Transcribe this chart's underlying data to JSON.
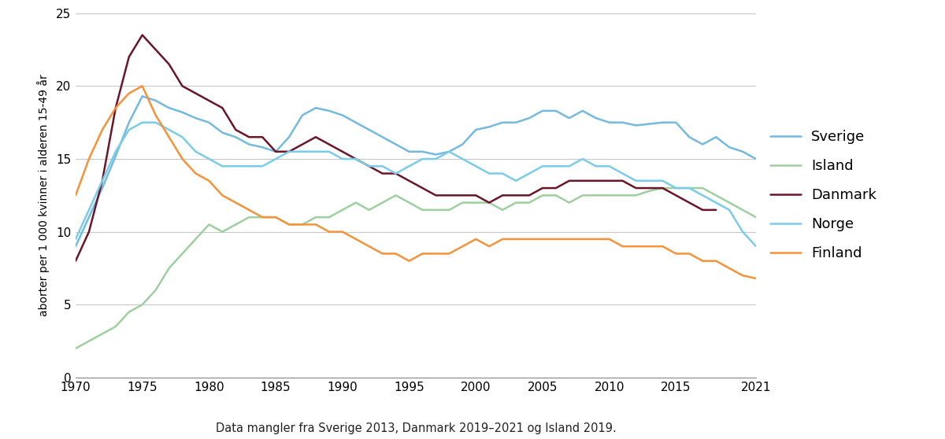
{
  "ylabel": "aborter per 1 000 kvinner i alderen 15-49 år",
  "footnote": "Data mangler fra Sverige 2013, Danmark 2019–2021 og Island 2019.",
  "ylim": [
    0,
    25
  ],
  "yticks": [
    0,
    5,
    10,
    15,
    20,
    25
  ],
  "xlim": [
    1970,
    2021
  ],
  "xticks": [
    1970,
    1975,
    1980,
    1985,
    1990,
    1995,
    2000,
    2005,
    2010,
    2015,
    2021
  ],
  "background_color": "#ffffff",
  "grid_color": "#c8c8c8",
  "series": {
    "Sverige": {
      "color": "#74b9e0",
      "years": [
        1970,
        1971,
        1972,
        1973,
        1974,
        1975,
        1976,
        1977,
        1978,
        1979,
        1980,
        1981,
        1982,
        1983,
        1984,
        1985,
        1986,
        1987,
        1988,
        1989,
        1990,
        1991,
        1992,
        1993,
        1994,
        1995,
        1996,
        1997,
        1998,
        1999,
        2000,
        2001,
        2002,
        2003,
        2004,
        2005,
        2006,
        2007,
        2008,
        2009,
        2010,
        2011,
        2012,
        2014,
        2015,
        2016,
        2017,
        2018,
        2019,
        2020,
        2021
      ],
      "values": [
        9.0,
        11.0,
        13.0,
        15.2,
        17.5,
        19.3,
        19.0,
        18.5,
        18.2,
        17.8,
        17.5,
        16.8,
        16.5,
        16.0,
        15.8,
        15.5,
        16.5,
        18.0,
        18.5,
        18.3,
        18.0,
        17.5,
        17.0,
        16.5,
        16.0,
        15.5,
        15.5,
        15.3,
        15.5,
        16.0,
        17.0,
        17.2,
        17.5,
        17.5,
        17.8,
        18.3,
        18.3,
        17.8,
        18.3,
        17.8,
        17.5,
        17.5,
        17.3,
        17.5,
        17.5,
        16.5,
        16.0,
        16.5,
        15.8,
        15.5,
        15.0
      ]
    },
    "Island": {
      "color": "#9ecf9e",
      "years": [
        1970,
        1971,
        1972,
        1973,
        1974,
        1975,
        1976,
        1977,
        1978,
        1979,
        1980,
        1981,
        1982,
        1983,
        1984,
        1985,
        1986,
        1987,
        1988,
        1989,
        1990,
        1991,
        1992,
        1993,
        1994,
        1995,
        1996,
        1997,
        1998,
        1999,
        2000,
        2001,
        2002,
        2003,
        2004,
        2005,
        2006,
        2007,
        2008,
        2009,
        2010,
        2011,
        2012,
        2013,
        2014,
        2015,
        2016,
        2017,
        2018,
        2020,
        2021
      ],
      "values": [
        2.0,
        2.5,
        3.0,
        3.5,
        4.5,
        5.0,
        6.0,
        7.5,
        8.5,
        9.5,
        10.5,
        10.0,
        10.5,
        11.0,
        11.0,
        11.0,
        10.5,
        10.5,
        11.0,
        11.0,
        11.5,
        12.0,
        11.5,
        12.0,
        12.5,
        12.0,
        11.5,
        11.5,
        11.5,
        12.0,
        12.0,
        12.0,
        11.5,
        12.0,
        12.0,
        12.5,
        12.5,
        12.0,
        12.5,
        12.5,
        12.5,
        12.5,
        12.5,
        12.8,
        13.0,
        13.0,
        13.0,
        13.0,
        12.5,
        11.5,
        11.0
      ]
    },
    "Danmark": {
      "color": "#6b1528",
      "years": [
        1970,
        1971,
        1972,
        1973,
        1974,
        1975,
        1976,
        1977,
        1978,
        1979,
        1980,
        1981,
        1982,
        1983,
        1984,
        1985,
        1986,
        1987,
        1988,
        1989,
        1990,
        1991,
        1992,
        1993,
        1994,
        1995,
        1996,
        1997,
        1998,
        1999,
        2000,
        2001,
        2002,
        2003,
        2004,
        2005,
        2006,
        2007,
        2008,
        2009,
        2010,
        2011,
        2012,
        2013,
        2014,
        2015,
        2016,
        2017,
        2018
      ],
      "values": [
        8.0,
        10.0,
        13.5,
        18.5,
        22.0,
        23.5,
        22.5,
        21.5,
        20.0,
        19.5,
        19.0,
        18.5,
        17.0,
        16.5,
        16.5,
        15.5,
        15.5,
        16.0,
        16.5,
        16.0,
        15.5,
        15.0,
        14.5,
        14.0,
        14.0,
        13.5,
        13.0,
        12.5,
        12.5,
        12.5,
        12.5,
        12.0,
        12.5,
        12.5,
        12.5,
        13.0,
        13.0,
        13.5,
        13.5,
        13.5,
        13.5,
        13.5,
        13.0,
        13.0,
        13.0,
        12.5,
        12.0,
        11.5,
        11.5
      ]
    },
    "Norge": {
      "color": "#7acce8",
      "years": [
        1970,
        1971,
        1972,
        1973,
        1974,
        1975,
        1976,
        1977,
        1978,
        1979,
        1980,
        1981,
        1982,
        1983,
        1984,
        1985,
        1986,
        1987,
        1988,
        1989,
        1990,
        1991,
        1992,
        1993,
        1994,
        1995,
        1996,
        1997,
        1998,
        1999,
        2000,
        2001,
        2002,
        2003,
        2004,
        2005,
        2006,
        2007,
        2008,
        2009,
        2010,
        2011,
        2012,
        2013,
        2014,
        2015,
        2016,
        2017,
        2018,
        2019,
        2020,
        2021
      ],
      "values": [
        9.5,
        11.5,
        13.5,
        15.5,
        17.0,
        17.5,
        17.5,
        17.0,
        16.5,
        15.5,
        15.0,
        14.5,
        14.5,
        14.5,
        14.5,
        15.0,
        15.5,
        15.5,
        15.5,
        15.5,
        15.0,
        15.0,
        14.5,
        14.5,
        14.0,
        14.5,
        15.0,
        15.0,
        15.5,
        15.0,
        14.5,
        14.0,
        14.0,
        13.5,
        14.0,
        14.5,
        14.5,
        14.5,
        15.0,
        14.5,
        14.5,
        14.0,
        13.5,
        13.5,
        13.5,
        13.0,
        13.0,
        12.5,
        12.0,
        11.5,
        10.0,
        9.0
      ]
    },
    "Finland": {
      "color": "#f5923a",
      "years": [
        1970,
        1971,
        1972,
        1973,
        1974,
        1975,
        1976,
        1977,
        1978,
        1979,
        1980,
        1981,
        1982,
        1983,
        1984,
        1985,
        1986,
        1987,
        1988,
        1989,
        1990,
        1991,
        1992,
        1993,
        1994,
        1995,
        1996,
        1997,
        1998,
        1999,
        2000,
        2001,
        2002,
        2003,
        2004,
        2005,
        2006,
        2007,
        2008,
        2009,
        2010,
        2011,
        2012,
        2013,
        2014,
        2015,
        2016,
        2017,
        2018,
        2019,
        2020,
        2021
      ],
      "values": [
        12.5,
        15.0,
        17.0,
        18.5,
        19.5,
        20.0,
        18.0,
        16.5,
        15.0,
        14.0,
        13.5,
        12.5,
        12.0,
        11.5,
        11.0,
        11.0,
        10.5,
        10.5,
        10.5,
        10.0,
        10.0,
        9.5,
        9.0,
        8.5,
        8.5,
        8.0,
        8.5,
        8.5,
        8.5,
        9.0,
        9.5,
        9.0,
        9.5,
        9.5,
        9.5,
        9.5,
        9.5,
        9.5,
        9.5,
        9.5,
        9.5,
        9.0,
        9.0,
        9.0,
        9.0,
        8.5,
        8.5,
        8.0,
        8.0,
        7.5,
        7.0,
        6.8
      ]
    }
  },
  "legend_order": [
    "Sverige",
    "Island",
    "Danmark",
    "Norge",
    "Finland"
  ]
}
